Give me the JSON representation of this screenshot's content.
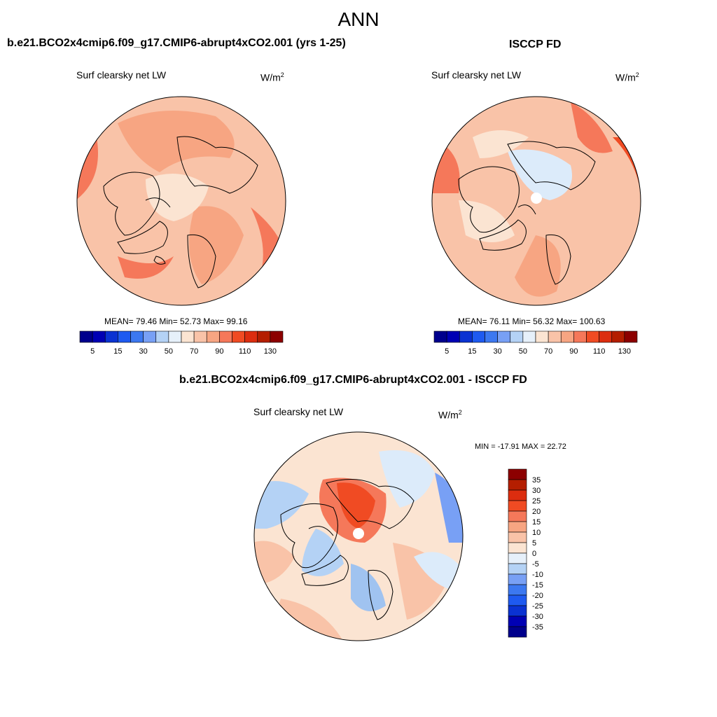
{
  "figure_title": "ANN",
  "panels": [
    {
      "title": "b.e21.BCO2x4cmip6.f09_g17.CMIP6-abrupt4xCO2.001 (yrs 1-25)",
      "variable": "Surf clearsky net LW",
      "units": "W/m",
      "units_sup": "2",
      "stats": "MEAN=  79.46  Min=  52.73  Max=  99.16",
      "colorbar": {
        "colors": [
          "#00008c",
          "#0000b4",
          "#0a32d2",
          "#1e5af0",
          "#3c78f0",
          "#78a0f5",
          "#b4d2f5",
          "#e6f0fa",
          "#fbe4d2",
          "#f9c3a8",
          "#f7a582",
          "#f5785a",
          "#f04b23",
          "#dc2d0f",
          "#b41e00",
          "#8c0000"
        ],
        "labels": [
          "5",
          "15",
          "30",
          "50",
          "70",
          "90",
          "110",
          "130"
        ]
      }
    },
    {
      "title": "ISCCP FD",
      "variable": "Surf clearsky net LW",
      "units": "W/m",
      "units_sup": "2",
      "stats": "MEAN=  76.11  Min=  56.32  Max= 100.63",
      "colorbar": {
        "colors": [
          "#00008c",
          "#0000b4",
          "#0a32d2",
          "#1e5af0",
          "#3c78f0",
          "#78a0f5",
          "#b4d2f5",
          "#e6f0fa",
          "#fbe4d2",
          "#f9c3a8",
          "#f7a582",
          "#f5785a",
          "#f04b23",
          "#dc2d0f",
          "#b41e00",
          "#8c0000"
        ],
        "labels": [
          "5",
          "15",
          "30",
          "50",
          "70",
          "90",
          "110",
          "130"
        ]
      }
    },
    {
      "title": "b.e21.BCO2x4cmip6.f09_g17.CMIP6-abrupt4xCO2.001 - ISCCP FD",
      "variable": "Surf clearsky net LW",
      "units": "W/m",
      "units_sup": "2",
      "stats": "MIN = -17.91 MAX =  22.72",
      "colorbar": {
        "colors": [
          "#8c0000",
          "#b41e00",
          "#dc2d0f",
          "#f04b23",
          "#f5785a",
          "#f7a582",
          "#f9c3a8",
          "#fbe4d2",
          "#e6f0fa",
          "#b4d2f5",
          "#78a0f5",
          "#3c78f0",
          "#1e5af0",
          "#0a32d2",
          "#0000b4",
          "#00008c"
        ],
        "labels": [
          "35",
          "30",
          "25",
          "20",
          "15",
          "10",
          "5",
          "0",
          "-5",
          "-10",
          "-15",
          "-20",
          "-25",
          "-30",
          "-35"
        ]
      }
    }
  ],
  "colors": {
    "warm_light": "#fbd2bc",
    "warm_mid": "#f7a582",
    "warm_strong": "#f5785a",
    "cool_light": "#dcebfa",
    "cool_mid": "#a0c3f0",
    "cool_strong": "#5a8cf0"
  }
}
